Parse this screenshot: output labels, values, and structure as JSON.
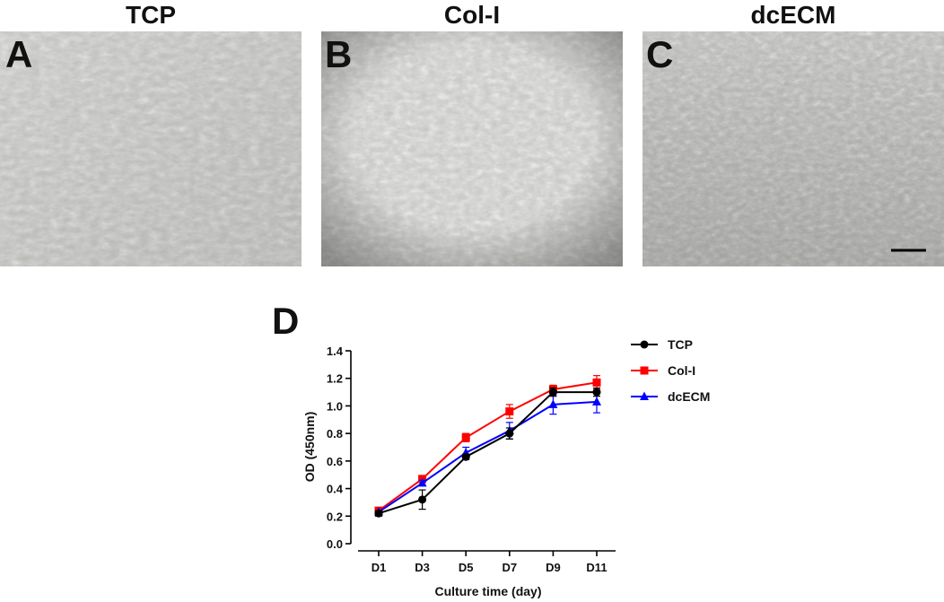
{
  "panels": [
    {
      "letter": "A",
      "title": "TCP"
    },
    {
      "letter": "B",
      "title": "Col-I"
    },
    {
      "letter": "C",
      "title": "dcECM"
    }
  ],
  "chart_letter": "D",
  "chart_data": {
    "type": "line",
    "categories": [
      "D1",
      "D3",
      "D5",
      "D7",
      "D9",
      "D11"
    ],
    "xlabel": "Culture time (day)",
    "ylabel": "OD (450nm)",
    "ylim": [
      0,
      1.4
    ],
    "yticks": [
      0.0,
      0.2,
      0.4,
      0.6,
      0.8,
      1.0,
      1.2,
      1.4
    ],
    "legend_position": "top-right",
    "grid": false,
    "series": [
      {
        "name": "TCP",
        "color": "#000000",
        "marker": "circle",
        "values": [
          0.22,
          0.32,
          0.63,
          0.8,
          1.1,
          1.1
        ],
        "errors": [
          0.02,
          0.07,
          0.02,
          0.04,
          0.03,
          0.03
        ]
      },
      {
        "name": "Col-I",
        "color": "#ff0000",
        "marker": "square",
        "values": [
          0.24,
          0.47,
          0.77,
          0.96,
          1.12,
          1.17
        ],
        "errors": [
          0.01,
          0.02,
          0.03,
          0.05,
          0.03,
          0.05
        ]
      },
      {
        "name": "dcECM",
        "color": "#0000ff",
        "marker": "triangle",
        "values": [
          0.23,
          0.44,
          0.66,
          0.82,
          1.01,
          1.03
        ],
        "errors": [
          0.01,
          0.02,
          0.04,
          0.06,
          0.07,
          0.08
        ]
      }
    ]
  }
}
